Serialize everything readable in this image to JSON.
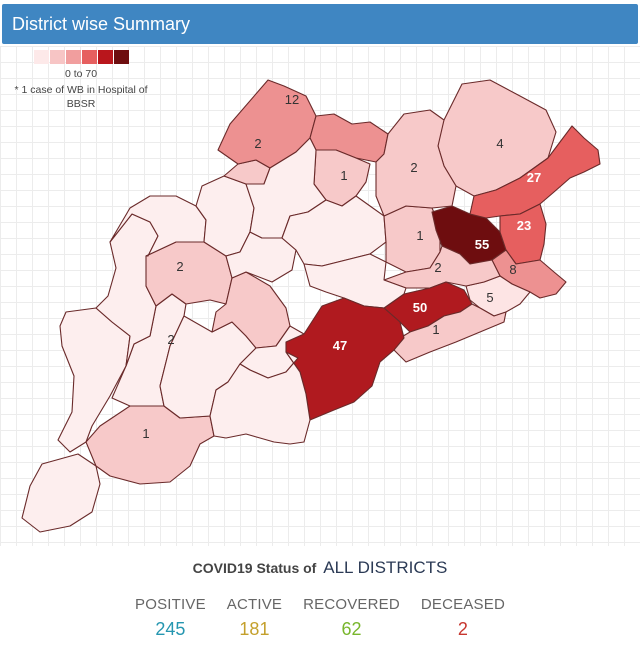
{
  "header": {
    "title": "District wise Summary"
  },
  "legend": {
    "range": "0 to 70",
    "note_line1": "* 1 case of WB in Hospital of",
    "note_line2": "BBSR",
    "swatches": [
      "#fde9e9",
      "#f7c5c5",
      "#f19e9e",
      "#e65f5f",
      "#b9161c",
      "#6e0d0f"
    ]
  },
  "districts": [
    {
      "key": "gajapati",
      "label": "",
      "color": "#fdeeee"
    },
    {
      "key": "ganjam",
      "label": "",
      "color": "#fdeeee"
    },
    {
      "key": "rayagada",
      "label": "1",
      "color": "#f7c9c9"
    },
    {
      "key": "koraput",
      "label": "",
      "color": "#fdeeee"
    },
    {
      "key": "nabarangpur",
      "label": "",
      "color": "#fdeeee"
    },
    {
      "key": "kalahandi",
      "label": "2",
      "color": "#f7c9c9"
    },
    {
      "key": "kandhamal",
      "label": "",
      "color": "#fdeeee"
    },
    {
      "key": "nuapada",
      "label": "",
      "color": "#fdeeee"
    },
    {
      "key": "bolangir",
      "label": "2",
      "color": "#f7c9c9"
    },
    {
      "key": "bargarh",
      "label": "",
      "color": "#fdeeee"
    },
    {
      "key": "boudh",
      "label": "",
      "color": "#fdeeee"
    },
    {
      "key": "sonepur",
      "label": "",
      "color": "#fdeeee"
    },
    {
      "key": "jharsuguda",
      "label": "2",
      "color": "#f7c9c9"
    },
    {
      "key": "sundargarh",
      "label": "12",
      "color": "#ed9191"
    },
    {
      "key": "keonjhar",
      "label": "",
      "color": "#ed9191"
    },
    {
      "key": "deogarh",
      "label": "1",
      "color": "#f7c9c9"
    },
    {
      "key": "sambalpur",
      "label": "",
      "color": "#fdeeee"
    },
    {
      "key": "angul",
      "label": "",
      "color": "#fdeeee"
    },
    {
      "key": "dhenkanal",
      "label": "1",
      "color": "#f7c9c9"
    },
    {
      "key": "jajpur",
      "label": "55",
      "color": "#6e0d0f"
    },
    {
      "key": "mayurbhanj",
      "label": "4",
      "color": "#f7c9c9"
    },
    {
      "key": "keonjhar_east",
      "label": "2",
      "color": "#f7c9c9"
    },
    {
      "key": "balasore",
      "label": "27",
      "color": "#e65f5f"
    },
    {
      "key": "bhadrak",
      "label": "23",
      "color": "#e65f5f"
    },
    {
      "key": "kendrapara",
      "label": "8",
      "color": "#ed9191"
    },
    {
      "key": "jagatsinghpur",
      "label": "5",
      "color": "#fde4e4"
    },
    {
      "key": "cuttack",
      "label": "2",
      "color": "#f7c9c9"
    },
    {
      "key": "khordha",
      "label": "50",
      "color": "#b01a1f"
    },
    {
      "key": "puri",
      "label": "1",
      "color": "#f7c9c9"
    },
    {
      "key": "nayagarh",
      "label": "",
      "color": "#fdeeee"
    },
    {
      "key": "ganjam_coast",
      "label": "47",
      "color": "#b01a1f"
    },
    {
      "key": "ganjam_south",
      "label": "",
      "color": "#fdeeee"
    }
  ],
  "status": {
    "prefix": "COVID19 Status of",
    "scope": "ALL DISTRICTS",
    "items": [
      {
        "label": "POSITIVE",
        "value": "245",
        "color": "#2596b0"
      },
      {
        "label": "ACTIVE",
        "value": "181",
        "color": "#c4a02c"
      },
      {
        "label": "RECOVERED",
        "value": "62",
        "color": "#78b62c"
      },
      {
        "label": "DECEASED",
        "value": "2",
        "color": "#c7362f"
      }
    ]
  }
}
